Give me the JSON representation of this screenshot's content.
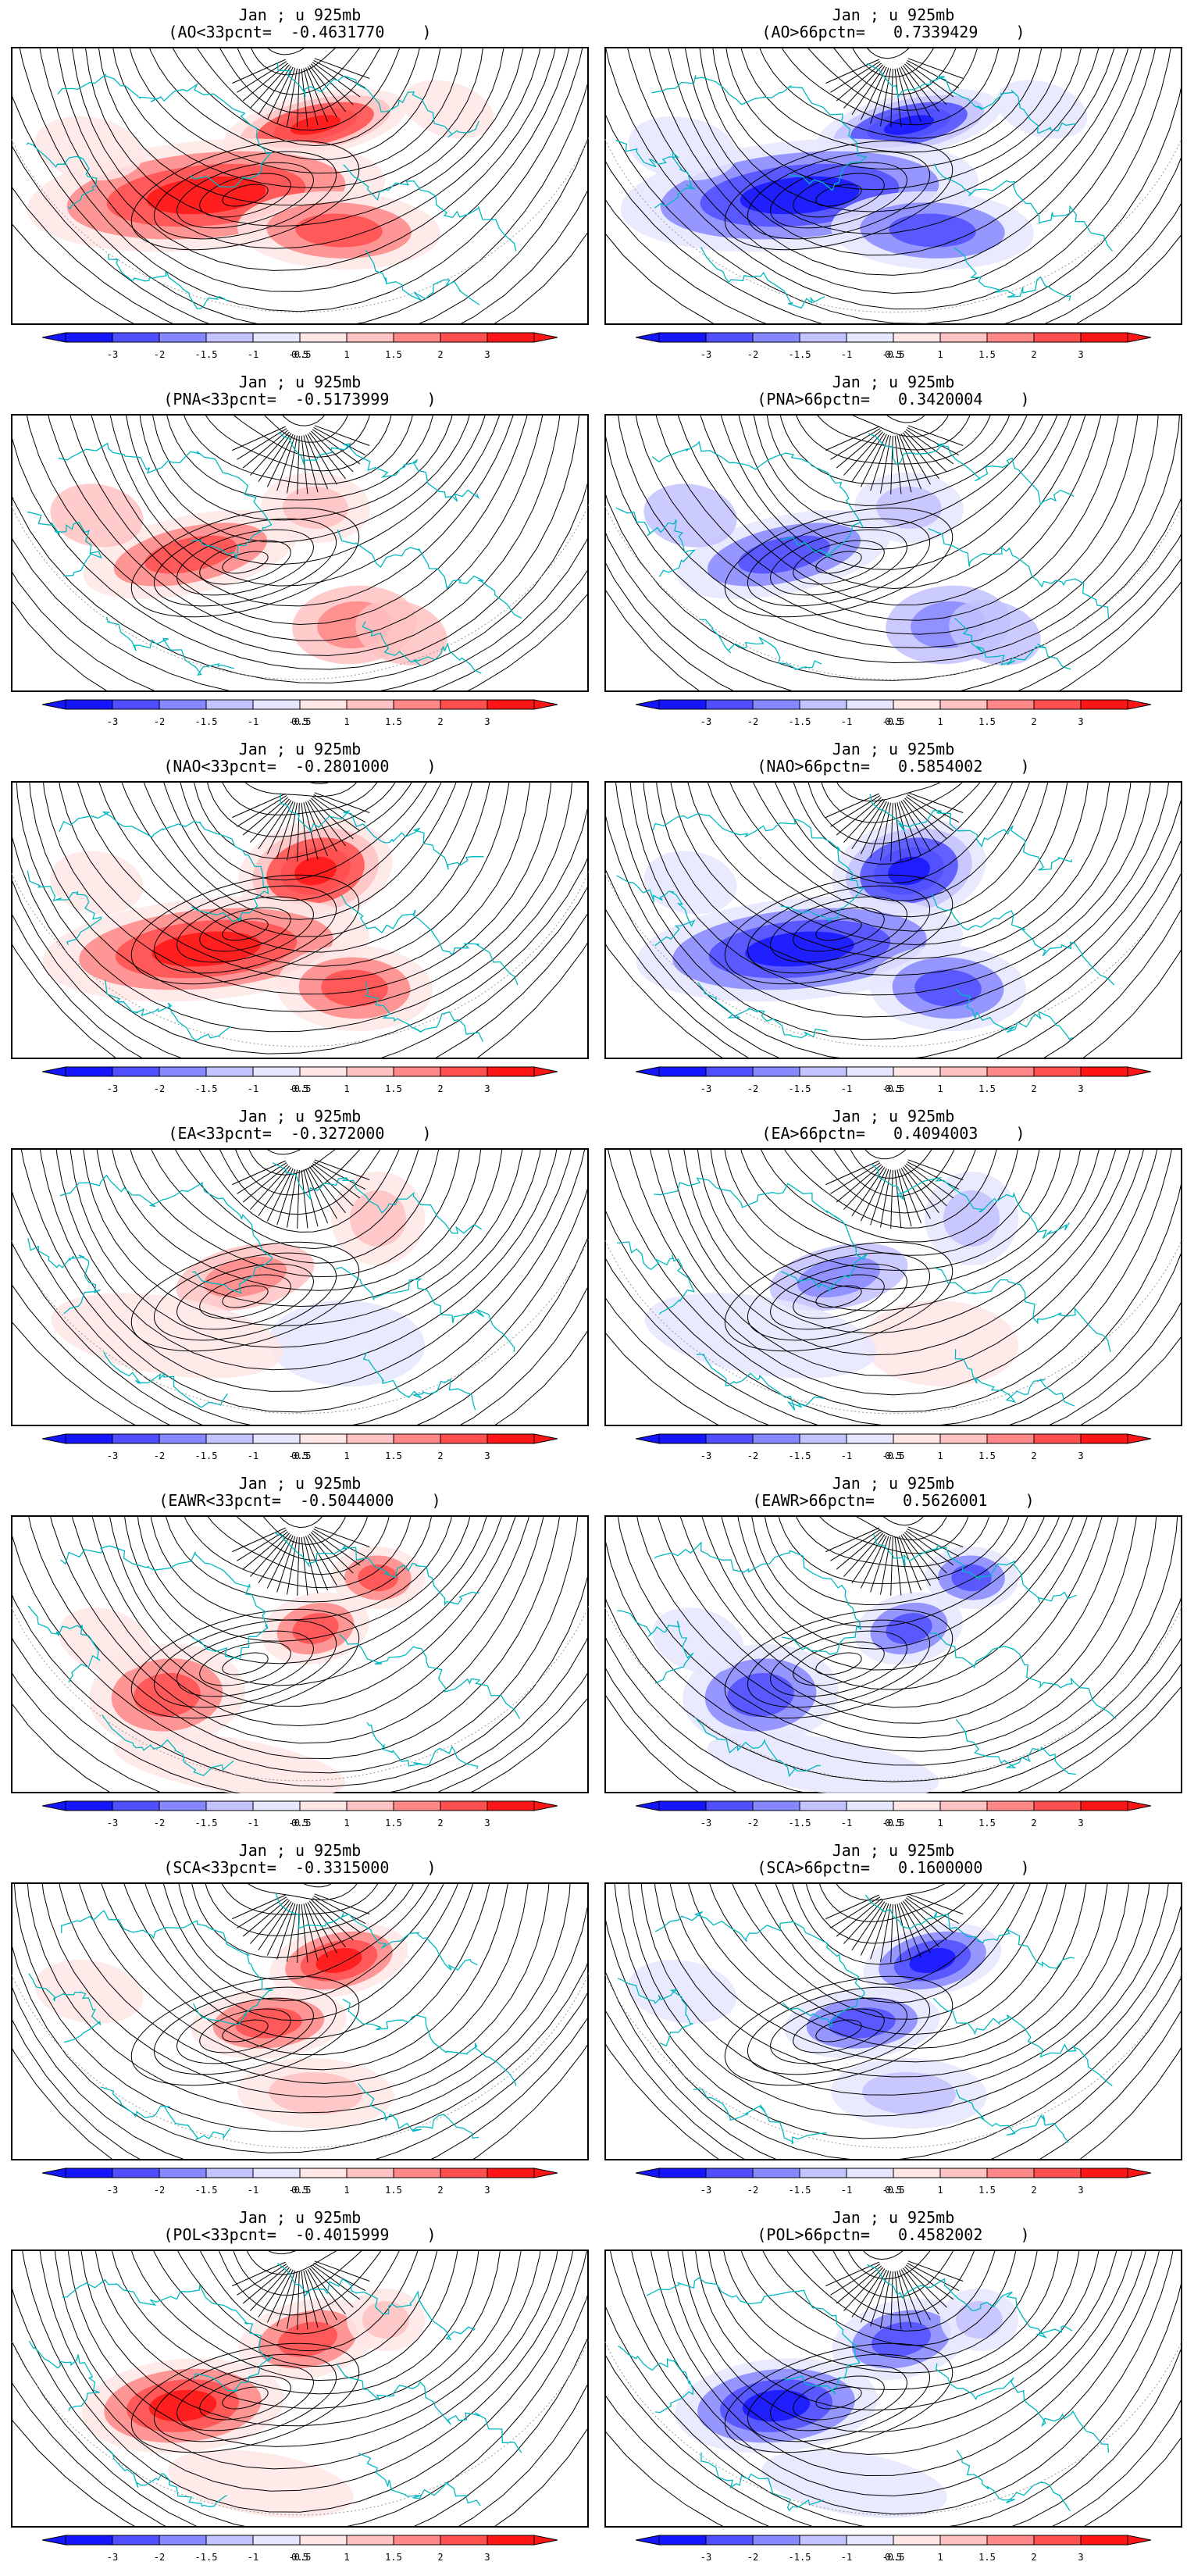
{
  "colors": {
    "neg": [
      "#1515ff",
      "#4f4fff",
      "#8787ff",
      "#c2c2ff",
      "#e6e6ff"
    ],
    "pos": [
      "#ffe6e6",
      "#ffc2c2",
      "#ff8787",
      "#ff4f4f",
      "#ff1515"
    ],
    "coast": "#00b8c0",
    "stream": "#000000"
  },
  "colorbar_ticks": [
    "-3",
    "-2",
    "-1.5",
    "-1",
    "-0.5",
    "0.5",
    "1",
    "1.5",
    "2",
    "3"
  ],
  "panels": [
    {
      "line1": "Jan ; u 925mb",
      "line2": "(AO<33pcnt=  -0.4631770    )",
      "sign": 1,
      "pattern": "ao"
    },
    {
      "line1": "Jan ; u 925mb",
      "line2": "(AO>66pctn=   0.7339429    )",
      "sign": -1,
      "pattern": "ao"
    },
    {
      "line1": "Jan ; u 925mb",
      "line2": "(PNA<33pcnt=  -0.5173999    )",
      "sign": 1,
      "pattern": "pna"
    },
    {
      "line1": "Jan ; u 925mb",
      "line2": "(PNA>66pctn=   0.3420004    )",
      "sign": -1,
      "pattern": "pna"
    },
    {
      "line1": "Jan ; u 925mb",
      "line2": "(NAO<33pcnt=  -0.2801000    )",
      "sign": 1,
      "pattern": "nao"
    },
    {
      "line1": "Jan ; u 925mb",
      "line2": "(NAO>66pctn=   0.5854002    )",
      "sign": -1,
      "pattern": "nao"
    },
    {
      "line1": "Jan ; u 925mb",
      "line2": "(EA<33pcnt=  -0.3272000    )",
      "sign": 1,
      "pattern": "ea"
    },
    {
      "line1": "Jan ; u 925mb",
      "line2": "(EA>66pctn=   0.4094003    )",
      "sign": -1,
      "pattern": "ea"
    },
    {
      "line1": "Jan ; u 925mb",
      "line2": "(EAWR<33pcnt=  -0.5044000    )",
      "sign": 1,
      "pattern": "eawr"
    },
    {
      "line1": "Jan ; u 925mb",
      "line2": "(EAWR>66pctn=   0.5626001    )",
      "sign": -1,
      "pattern": "eawr"
    },
    {
      "line1": "Jan ; u 925mb",
      "line2": "(SCA<33pcnt=  -0.3315000    )",
      "sign": 1,
      "pattern": "sca"
    },
    {
      "line1": "Jan ; u 925mb",
      "line2": "(SCA>66pctn=   0.1600000    )",
      "sign": -1,
      "pattern": "sca"
    },
    {
      "line1": "Jan ; u 925mb",
      "line2": "(POL<33pcnt=  -0.4015999    )",
      "sign": 1,
      "pattern": "pol"
    },
    {
      "line1": "Jan ; u 925mb",
      "line2": "(POL>66pctn=   0.4582002    )",
      "sign": -1,
      "pattern": "pol"
    }
  ]
}
